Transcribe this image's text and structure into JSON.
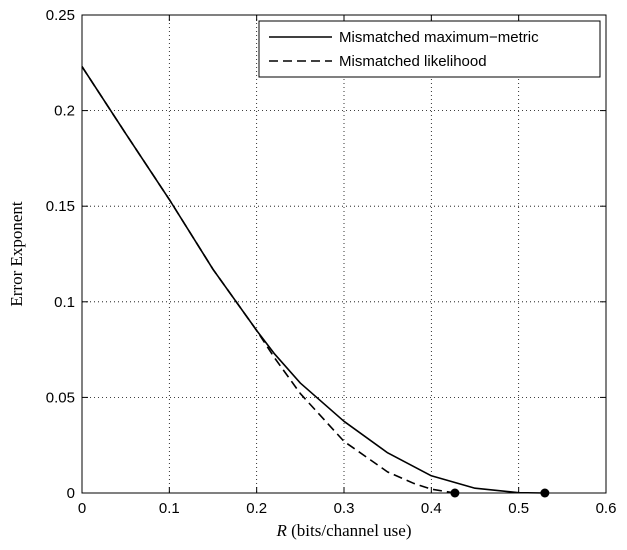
{
  "chart_data": {
    "type": "line",
    "xlabel_var": "R",
    "xlabel_rest": " (bits/channel use)",
    "ylabel": "Error Exponent",
    "xlim": [
      0,
      0.6
    ],
    "ylim": [
      0,
      0.25
    ],
    "xticks": [
      "0",
      "0.1",
      "0.2",
      "0.3",
      "0.4",
      "0.5",
      "0.6"
    ],
    "yticks": [
      "0",
      "0.05",
      "0.1",
      "0.15",
      "0.2",
      "0.25"
    ],
    "grid": true,
    "legend_position": "top-right",
    "series": [
      {
        "name": "Mismatched maximum−metric",
        "style": "solid",
        "color": "#000000",
        "x": [
          0,
          0.05,
          0.1,
          0.15,
          0.2,
          0.22,
          0.25,
          0.3,
          0.35,
          0.4,
          0.45,
          0.5,
          0.53
        ],
        "y": [
          0.223,
          0.188,
          0.1535,
          0.117,
          0.085,
          0.073,
          0.0575,
          0.0375,
          0.021,
          0.009,
          0.0025,
          0.0002,
          0.0
        ]
      },
      {
        "name": "Mismatched likelihood",
        "style": "dashed",
        "color": "#000000",
        "x": [
          0,
          0.05,
          0.1,
          0.15,
          0.2,
          0.22,
          0.25,
          0.3,
          0.35,
          0.38,
          0.4,
          0.427
        ],
        "y": [
          0.223,
          0.188,
          0.1535,
          0.117,
          0.085,
          0.071,
          0.052,
          0.027,
          0.011,
          0.005,
          0.002,
          0.0
        ]
      }
    ],
    "markers": [
      {
        "x": 0.427,
        "y": 0
      },
      {
        "x": 0.53,
        "y": 0
      }
    ]
  }
}
